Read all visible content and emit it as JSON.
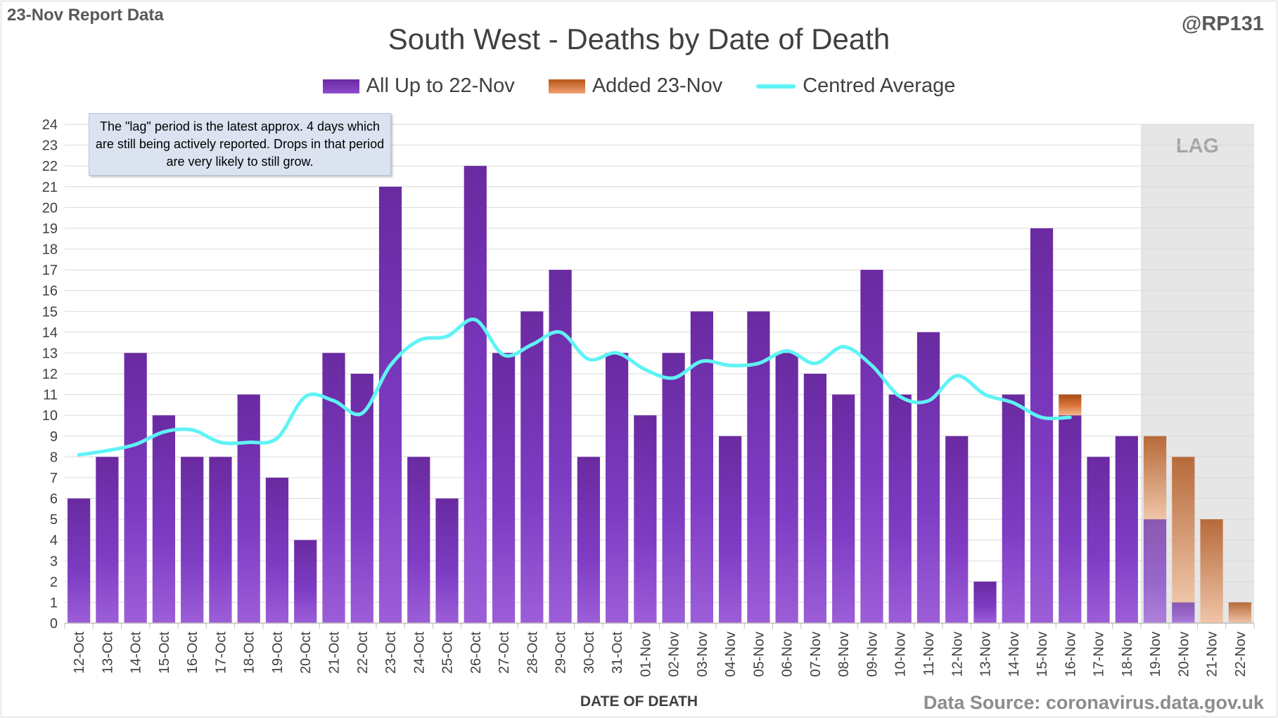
{
  "header": {
    "report_label": "23-Nov Report Data",
    "handle": "@RP131",
    "source": "Data Source: coronavirus.data.gov.uk"
  },
  "note": "The \"lag\" period is the latest approx. 4 days which are still being actively reported. Drops in that period are very likely to still grow.",
  "colors": {
    "all_up_to": "#7a35b8",
    "added": "#d9733a",
    "average": "#5ff3f5",
    "lag_shading": "#e6e6e6"
  },
  "chart_data": {
    "type": "bar",
    "title": "South West - Deaths by Date of Death",
    "xlabel": "DATE OF DEATH",
    "ylabel": "",
    "ylim": [
      0,
      24
    ],
    "yticks": [
      0,
      1,
      2,
      3,
      4,
      5,
      6,
      7,
      8,
      9,
      10,
      11,
      12,
      13,
      14,
      15,
      16,
      17,
      18,
      19,
      20,
      21,
      22,
      23,
      24
    ],
    "stacked": true,
    "grid": true,
    "legend_position": "top",
    "lag_label": "LAG",
    "lag_categories": [
      "19-Nov",
      "20-Nov",
      "21-Nov",
      "22-Nov"
    ],
    "categories": [
      "12-Oct",
      "13-Oct",
      "14-Oct",
      "15-Oct",
      "16-Oct",
      "17-Oct",
      "18-Oct",
      "19-Oct",
      "20-Oct",
      "21-Oct",
      "22-Oct",
      "23-Oct",
      "24-Oct",
      "25-Oct",
      "26-Oct",
      "27-Oct",
      "28-Oct",
      "29-Oct",
      "30-Oct",
      "31-Oct",
      "01-Nov",
      "02-Nov",
      "03-Nov",
      "04-Nov",
      "05-Nov",
      "06-Nov",
      "07-Nov",
      "08-Nov",
      "09-Nov",
      "10-Nov",
      "11-Nov",
      "12-Nov",
      "13-Nov",
      "14-Nov",
      "15-Nov",
      "16-Nov",
      "17-Nov",
      "18-Nov",
      "19-Nov",
      "20-Nov",
      "21-Nov",
      "22-Nov"
    ],
    "series": [
      {
        "name": "All Up to 22-Nov",
        "kind": "bar",
        "values": [
          6,
          8,
          13,
          10,
          8,
          8,
          11,
          7,
          4,
          13,
          12,
          21,
          8,
          6,
          22,
          13,
          15,
          17,
          8,
          13,
          10,
          13,
          15,
          9,
          15,
          13,
          12,
          11,
          17,
          11,
          14,
          9,
          2,
          11,
          19,
          10,
          8,
          9,
          5,
          1,
          0,
          0
        ]
      },
      {
        "name": "Added 23-Nov",
        "kind": "bar",
        "values": [
          0,
          0,
          0,
          0,
          0,
          0,
          0,
          0,
          0,
          0,
          0,
          0,
          0,
          0,
          0,
          0,
          0,
          0,
          0,
          0,
          0,
          0,
          0,
          0,
          0,
          0,
          0,
          0,
          0,
          0,
          0,
          0,
          0,
          0,
          0,
          1,
          0,
          0,
          4,
          7,
          5,
          1
        ]
      },
      {
        "name": "Centred Average",
        "kind": "line",
        "values": [
          8.1,
          8.3,
          8.6,
          9.2,
          9.3,
          8.7,
          8.7,
          8.9,
          10.9,
          10.7,
          10.1,
          12.4,
          13.6,
          13.8,
          14.6,
          12.9,
          13.4,
          14.0,
          12.7,
          13.0,
          12.2,
          11.8,
          12.6,
          12.4,
          12.5,
          13.1,
          12.5,
          13.3,
          12.4,
          10.9,
          10.7,
          11.9,
          11.0,
          10.6,
          9.9,
          9.9,
          null,
          null,
          null,
          null,
          null,
          null
        ]
      }
    ]
  }
}
